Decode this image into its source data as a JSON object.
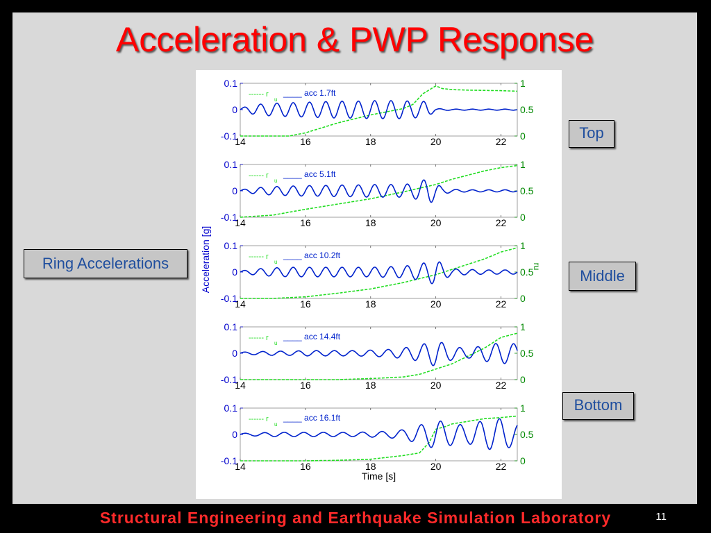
{
  "title": "Acceleration & PWP Response",
  "labels": {
    "ring": "Ring Accelerations",
    "top": "Top",
    "middle": "Middle",
    "bottom": "Bottom"
  },
  "page_number": "11",
  "footer": "Structural Engineering and Earthquake Simulation Laboratory",
  "colors": {
    "title": "#ff0000",
    "acc_series": "#0022cc",
    "ru_series": "#22dd22",
    "left_axis": "#0000cc",
    "right_axis": "#008800"
  },
  "chart_data": [
    {
      "type": "line",
      "xlabel": "",
      "ylabel": "",
      "y2label": "",
      "xlim": [
        14,
        22.5
      ],
      "xticks": [
        14,
        16,
        18,
        20,
        22
      ],
      "ylim": [
        -0.1,
        0.1
      ],
      "yticks": [
        "0.1",
        "0",
        "-0.1"
      ],
      "y2lim": [
        0,
        1
      ],
      "y2ticks": [
        "1",
        "0.5",
        "0"
      ],
      "legend": {
        "ru_prefix": "------ r",
        "ru_sub": "u",
        "acc": "____ acc 1.7ft"
      },
      "series": [
        {
          "name": "acc 1.7ft",
          "axis": "left",
          "x": [
            14.0,
            14.5,
            15.0,
            15.5,
            16.0,
            16.5,
            17.0,
            17.5,
            18.0,
            18.5,
            19.0,
            19.5,
            19.7,
            20.0,
            20.5,
            21.0,
            21.5,
            22.0,
            22.5
          ],
          "amplitude": [
            0.006,
            0.02,
            0.024,
            0.026,
            0.028,
            0.03,
            0.032,
            0.032,
            0.034,
            0.034,
            0.034,
            0.03,
            0.032,
            0.004,
            0.002,
            0.002,
            0.002,
            0.002,
            0.002
          ],
          "period": 0.5
        },
        {
          "name": "r_u",
          "axis": "right",
          "x": [
            14.0,
            15.5,
            16.0,
            17.0,
            18.0,
            19.0,
            19.3,
            19.6,
            20.0,
            20.2,
            20.5,
            21.0,
            22.0,
            22.5
          ],
          "y": [
            0.0,
            0.0,
            0.06,
            0.25,
            0.4,
            0.52,
            0.6,
            0.8,
            0.95,
            0.9,
            0.88,
            0.87,
            0.86,
            0.85
          ]
        }
      ]
    },
    {
      "type": "line",
      "xlabel": "",
      "ylabel": "",
      "y2label": "",
      "xlim": [
        14,
        22.5
      ],
      "xticks": [
        14,
        16,
        18,
        20,
        22
      ],
      "ylim": [
        -0.1,
        0.1
      ],
      "yticks": [
        "0.1",
        "0",
        "-0.1"
      ],
      "y2lim": [
        0,
        1
      ],
      "y2ticks": [
        "1",
        "0.5",
        "0"
      ],
      "legend": {
        "ru_prefix": "------ r",
        "ru_sub": "u",
        "acc": "____ acc 5.1ft"
      },
      "series": [
        {
          "name": "acc 5.1ft",
          "axis": "left",
          "x": [
            14.0,
            14.5,
            15.0,
            15.5,
            16.0,
            16.5,
            17.0,
            17.5,
            18.0,
            18.5,
            19.0,
            19.3,
            19.6,
            19.8,
            20.0,
            20.2,
            20.5,
            21.0,
            21.5,
            22.0,
            22.5
          ],
          "amplitude": [
            0.004,
            0.012,
            0.016,
            0.018,
            0.02,
            0.02,
            0.022,
            0.022,
            0.024,
            0.024,
            0.024,
            0.028,
            0.04,
            0.05,
            0.03,
            0.012,
            0.006,
            0.004,
            0.004,
            0.004,
            0.004
          ],
          "period": 0.5
        },
        {
          "name": "r_u",
          "axis": "right",
          "x": [
            14.0,
            15.0,
            16.0,
            17.0,
            18.0,
            19.0,
            20.0,
            20.5,
            21.0,
            21.5,
            22.0,
            22.5
          ],
          "y": [
            0.0,
            0.04,
            0.15,
            0.25,
            0.35,
            0.48,
            0.62,
            0.72,
            0.8,
            0.88,
            0.94,
            0.98
          ]
        }
      ]
    },
    {
      "type": "line",
      "xlabel": "",
      "ylabel": "Acceleration [g]",
      "y2label": "r_u",
      "xlim": [
        14,
        22.5
      ],
      "xticks": [
        14,
        16,
        18,
        20,
        22
      ],
      "ylim": [
        -0.1,
        0.1
      ],
      "yticks": [
        "0.1",
        "0",
        "-0.1"
      ],
      "y2lim": [
        0,
        1
      ],
      "y2ticks": [
        "1",
        "0.5",
        "0"
      ],
      "legend": {
        "ru_prefix": "------ r",
        "ru_sub": "u",
        "acc": "____ acc 10.2ft"
      },
      "series": [
        {
          "name": "acc 10.2ft",
          "axis": "left",
          "x": [
            14.0,
            14.5,
            15.0,
            15.5,
            16.0,
            16.5,
            17.0,
            17.5,
            18.0,
            18.5,
            19.0,
            19.5,
            19.8,
            20.0,
            20.2,
            20.5,
            21.0,
            21.5,
            22.0,
            22.5
          ],
          "amplitude": [
            0.004,
            0.012,
            0.016,
            0.018,
            0.018,
            0.018,
            0.018,
            0.018,
            0.018,
            0.02,
            0.022,
            0.03,
            0.04,
            0.05,
            0.03,
            0.012,
            0.01,
            0.008,
            0.008,
            0.008
          ],
          "period": 0.5
        },
        {
          "name": "r_u",
          "axis": "right",
          "x": [
            14.0,
            15.0,
            16.0,
            17.0,
            18.0,
            19.0,
            20.0,
            20.5,
            21.0,
            21.5,
            22.0,
            22.5
          ],
          "y": [
            0.0,
            0.0,
            0.03,
            0.1,
            0.18,
            0.3,
            0.45,
            0.55,
            0.65,
            0.75,
            0.88,
            0.96
          ]
        }
      ]
    },
    {
      "type": "line",
      "xlabel": "",
      "ylabel": "",
      "y2label": "",
      "xlim": [
        14,
        22.5
      ],
      "xticks": [
        14,
        16,
        18,
        20,
        22
      ],
      "ylim": [
        -0.1,
        0.1
      ],
      "yticks": [
        "0.1",
        "0",
        "-0.1"
      ],
      "y2lim": [
        0,
        1
      ],
      "y2ticks": [
        "1",
        "0.5",
        "0"
      ],
      "legend": {
        "ru_prefix": "------ r",
        "ru_sub": "u",
        "acc": "____ acc 14.4ft"
      },
      "series": [
        {
          "name": "acc 14.4ft",
          "axis": "left",
          "x": [
            14.0,
            14.5,
            15.0,
            15.5,
            16.0,
            16.5,
            17.0,
            17.5,
            18.0,
            18.5,
            19.0,
            19.5,
            20.0,
            20.5,
            21.0,
            21.5,
            22.0,
            22.5
          ],
          "amplitude": [
            0.004,
            0.006,
            0.008,
            0.008,
            0.01,
            0.01,
            0.01,
            0.01,
            0.012,
            0.014,
            0.02,
            0.03,
            0.05,
            0.025,
            0.018,
            0.03,
            0.04,
            0.035
          ],
          "period": 0.55
        },
        {
          "name": "r_u",
          "axis": "right",
          "x": [
            14.0,
            16.0,
            17.0,
            18.0,
            19.0,
            19.5,
            20.0,
            20.5,
            21.0,
            21.5,
            22.0,
            22.5
          ],
          "y": [
            0.0,
            0.0,
            0.0,
            0.02,
            0.05,
            0.1,
            0.2,
            0.3,
            0.45,
            0.6,
            0.8,
            0.88
          ]
        }
      ]
    },
    {
      "type": "line",
      "xlabel": "Time [s]",
      "ylabel": "",
      "y2label": "",
      "xlim": [
        14,
        22.5
      ],
      "xticks": [
        14,
        16,
        18,
        20,
        22
      ],
      "ylim": [
        -0.1,
        0.1
      ],
      "yticks": [
        "0.1",
        "0",
        "-0.1"
      ],
      "y2lim": [
        0,
        1
      ],
      "y2ticks": [
        "1",
        "0.5",
        "0"
      ],
      "legend": {
        "ru_prefix": "------ r",
        "ru_sub": "u",
        "acc": "____ acc 16.1ft"
      },
      "series": [
        {
          "name": "acc 16.1ft",
          "axis": "left",
          "x": [
            14.0,
            14.5,
            15.0,
            15.5,
            16.0,
            16.5,
            17.0,
            17.5,
            18.0,
            18.5,
            19.0,
            19.5,
            20.0,
            20.5,
            21.0,
            21.5,
            22.0,
            22.5
          ],
          "amplitude": [
            0.004,
            0.006,
            0.008,
            0.008,
            0.008,
            0.008,
            0.008,
            0.008,
            0.01,
            0.012,
            0.018,
            0.035,
            0.055,
            0.04,
            0.035,
            0.055,
            0.06,
            0.04
          ],
          "period": 0.6
        },
        {
          "name": "r_u",
          "axis": "right",
          "x": [
            14.0,
            16.0,
            17.0,
            18.0,
            19.0,
            19.5,
            19.8,
            20.0,
            20.3,
            20.5,
            21.0,
            21.5,
            22.0,
            22.5
          ],
          "y": [
            0.0,
            0.0,
            0.01,
            0.03,
            0.1,
            0.15,
            0.35,
            0.6,
            0.65,
            0.7,
            0.75,
            0.8,
            0.82,
            0.85
          ]
        }
      ]
    }
  ]
}
